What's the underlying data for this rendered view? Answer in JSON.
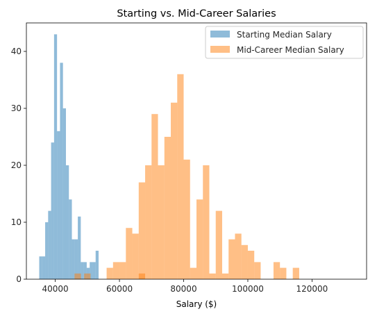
{
  "chart_data": {
    "type": "bar",
    "title": "Starting vs. Mid-Career Salaries",
    "xlabel": "Salary ($)",
    "ylabel": "",
    "xlim": [
      31000,
      137000
    ],
    "ylim": [
      0,
      45
    ],
    "xticks": [
      40000,
      60000,
      80000,
      100000,
      120000
    ],
    "yticks": [
      0,
      10,
      20,
      30,
      40
    ],
    "grid": false,
    "legend": "top-right",
    "series": [
      {
        "name": "Starting Median Salary",
        "color": "#1f77b4",
        "opacity": 0.5,
        "bin_start": 35000,
        "bin_width": 925,
        "counts": [
          4,
          4,
          10,
          12,
          24,
          43,
          26,
          38,
          30,
          20,
          14,
          7,
          7,
          11,
          3,
          3,
          2,
          3,
          3,
          5
        ]
      },
      {
        "name": "Mid-Career Median Salary",
        "color": "#ff7f0e",
        "opacity": 0.5,
        "bin_start": 62000,
        "bin_width": 2000,
        "counts": [
          9,
          8,
          17,
          20,
          29,
          20,
          25,
          31,
          36,
          21,
          2,
          14,
          20,
          1,
          12,
          1,
          7,
          8,
          6,
          5,
          3,
          0,
          0,
          3,
          2,
          0,
          2
        ],
        "extra_bins": [
          {
            "start": 46000,
            "count": 1
          },
          {
            "start": 49000,
            "count": 1
          },
          {
            "start": 56000,
            "count": 2
          },
          {
            "start": 58000,
            "count": 3
          },
          {
            "start": 60000,
            "count": 3
          },
          {
            "start": 66000,
            "count": 1
          }
        ]
      }
    ]
  }
}
